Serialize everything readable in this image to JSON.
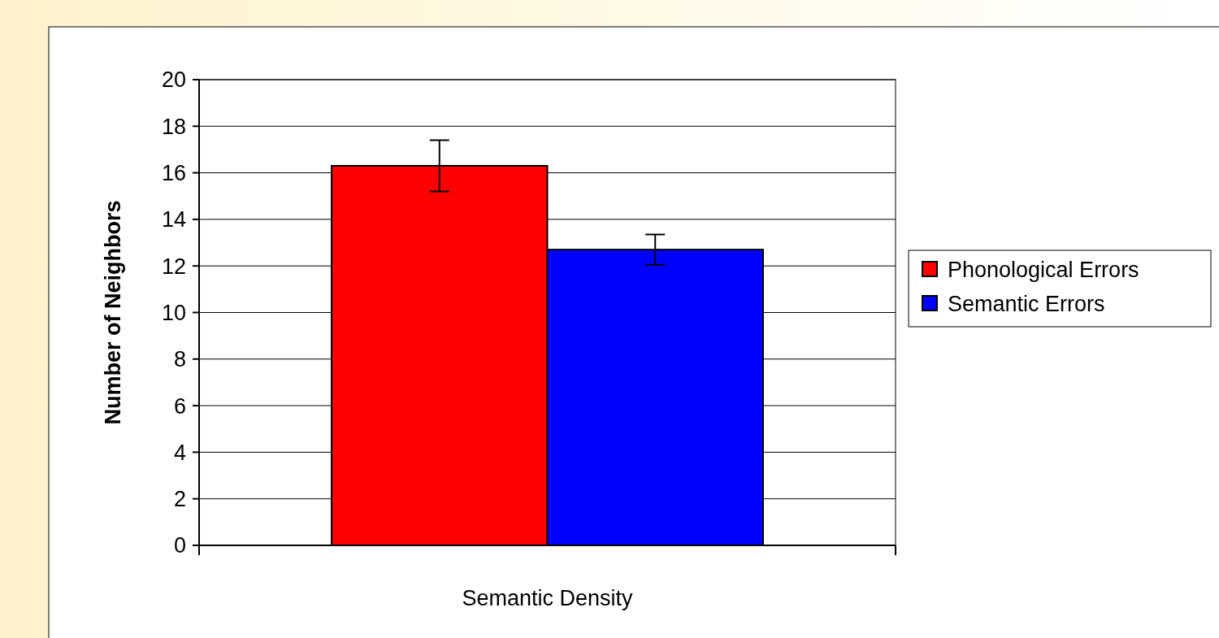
{
  "chart_data": {
    "type": "bar",
    "categories": [
      "Semantic Density"
    ],
    "ylabel": "Number of Neighbors",
    "series": [
      {
        "name": "Phonological Errors",
        "color": "#ff0000",
        "values": [
          16.3
        ],
        "errors": [
          1.1
        ]
      },
      {
        "name": "Semantic Errors",
        "color": "#0000ff",
        "values": [
          12.7
        ],
        "errors": [
          0.65
        ]
      }
    ],
    "ylim": [
      0,
      20
    ],
    "yticks": [
      0,
      2,
      4,
      6,
      8,
      10,
      12,
      14,
      16,
      18,
      20
    ],
    "grid": "y",
    "legend": "right"
  }
}
